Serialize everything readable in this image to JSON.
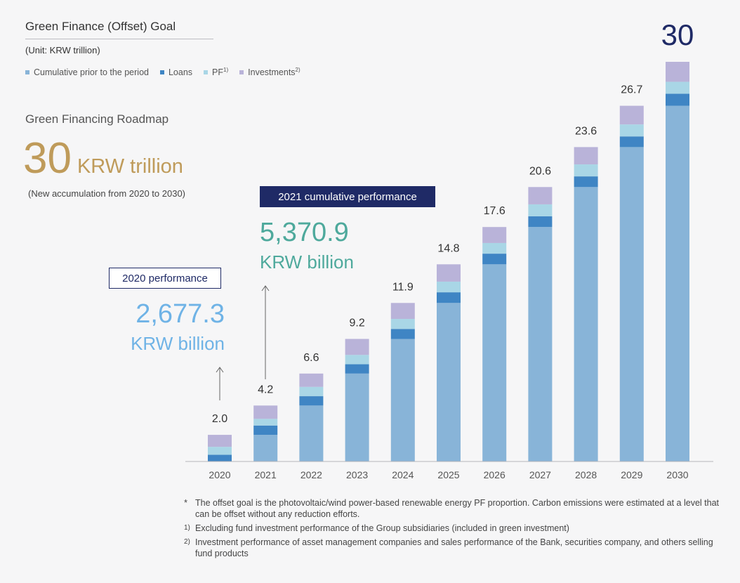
{
  "header": {
    "title": "Green Finance (Offset) Goal",
    "unit": "(Unit: KRW trillion)"
  },
  "legend": [
    {
      "label": "Cumulative prior to the period",
      "sup": "",
      "color": "#88b4d8"
    },
    {
      "label": "Loans",
      "sup": "",
      "color": "#3f85c4"
    },
    {
      "label": "PF",
      "sup": "1)",
      "color": "#a9d6e6"
    },
    {
      "label": "Investments",
      "sup": "2)",
      "color": "#b9b3d9"
    }
  ],
  "roadmap": {
    "title": "Green Financing Roadmap",
    "value": "30",
    "unit": "KRW trillion",
    "note": "(New accumulation from 2020 to 2030)"
  },
  "callouts": {
    "p2020": {
      "label": "2020 performance",
      "value": "2,677.3",
      "unit": "KRW billion"
    },
    "p2021": {
      "label": "2021 cumulative performance",
      "value": "5,370.9",
      "unit": "KRW billion"
    }
  },
  "chart_data": {
    "type": "bar",
    "stacked": true,
    "categories": [
      "2020",
      "2021",
      "2022",
      "2023",
      "2024",
      "2025",
      "2026",
      "2027",
      "2028",
      "2029",
      "2030"
    ],
    "totals": [
      2.0,
      4.2,
      6.6,
      9.2,
      11.9,
      14.8,
      17.6,
      20.6,
      23.6,
      26.7,
      30
    ],
    "total_labels": [
      "2.0",
      "4.2",
      "6.6",
      "9.2",
      "11.9",
      "14.8",
      "17.6",
      "20.6",
      "23.6",
      "26.7",
      "30"
    ],
    "series": [
      {
        "name": "Cumulative prior to the period",
        "values": [
          0,
          2.0,
          4.2,
          6.6,
          9.2,
          11.9,
          14.8,
          17.6,
          20.6,
          23.6,
          26.7
        ]
      },
      {
        "name": "Loans",
        "values": [
          0.5,
          0.7,
          0.7,
          0.7,
          0.75,
          0.8,
          0.8,
          0.8,
          0.8,
          0.8,
          0.9
        ]
      },
      {
        "name": "PF",
        "values": [
          0.6,
          0.5,
          0.7,
          0.7,
          0.75,
          0.8,
          0.8,
          0.9,
          0.9,
          0.9,
          0.9
        ]
      },
      {
        "name": "Investments",
        "values": [
          0.9,
          1.0,
          1.0,
          1.2,
          1.2,
          1.3,
          1.2,
          1.3,
          1.3,
          1.4,
          1.5
        ]
      }
    ],
    "ylim": [
      0,
      30
    ],
    "last_total_highlight": "30",
    "legend_position": "top-left",
    "grid": false
  },
  "footnotes": [
    {
      "mark": "*",
      "text": "The offset goal is the photovoltaic/wind power-based renewable energy PF proportion. Carbon emissions were estimated at a level that can be offset without any reduction efforts."
    },
    {
      "mark": "1)",
      "text": "Excluding fund investment performance of the Group subsidiaries (included in green investment)"
    },
    {
      "mark": "2)",
      "text": "Investment performance of asset management companies and sales performance of the Bank, securities company, and others selling fund products"
    }
  ]
}
